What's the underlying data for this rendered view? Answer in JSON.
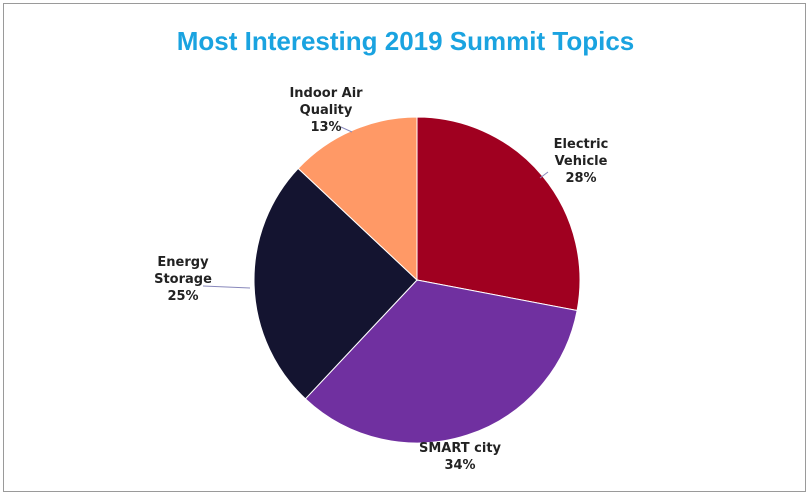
{
  "chart_data": {
    "type": "pie",
    "title": "Most Interesting 2019 Summit Topics",
    "slices": [
      {
        "label": [
          "Electric",
          "Vehicle"
        ],
        "pct_text": "28%",
        "value": 28,
        "color": "#a00020"
      },
      {
        "label": [
          "SMART city"
        ],
        "pct_text": "34%",
        "value": 34,
        "color": "#7030a0"
      },
      {
        "label": [
          "Energy",
          "Storage"
        ],
        "pct_text": "25%",
        "value": 25,
        "color": "#141430"
      },
      {
        "label": [
          "Indoor Air",
          "Quality"
        ],
        "pct_text": "13%",
        "value": 13,
        "color": "#ff9966"
      }
    ]
  },
  "colors": {
    "title": "#1aa3e0",
    "leader": "#8888bb"
  }
}
